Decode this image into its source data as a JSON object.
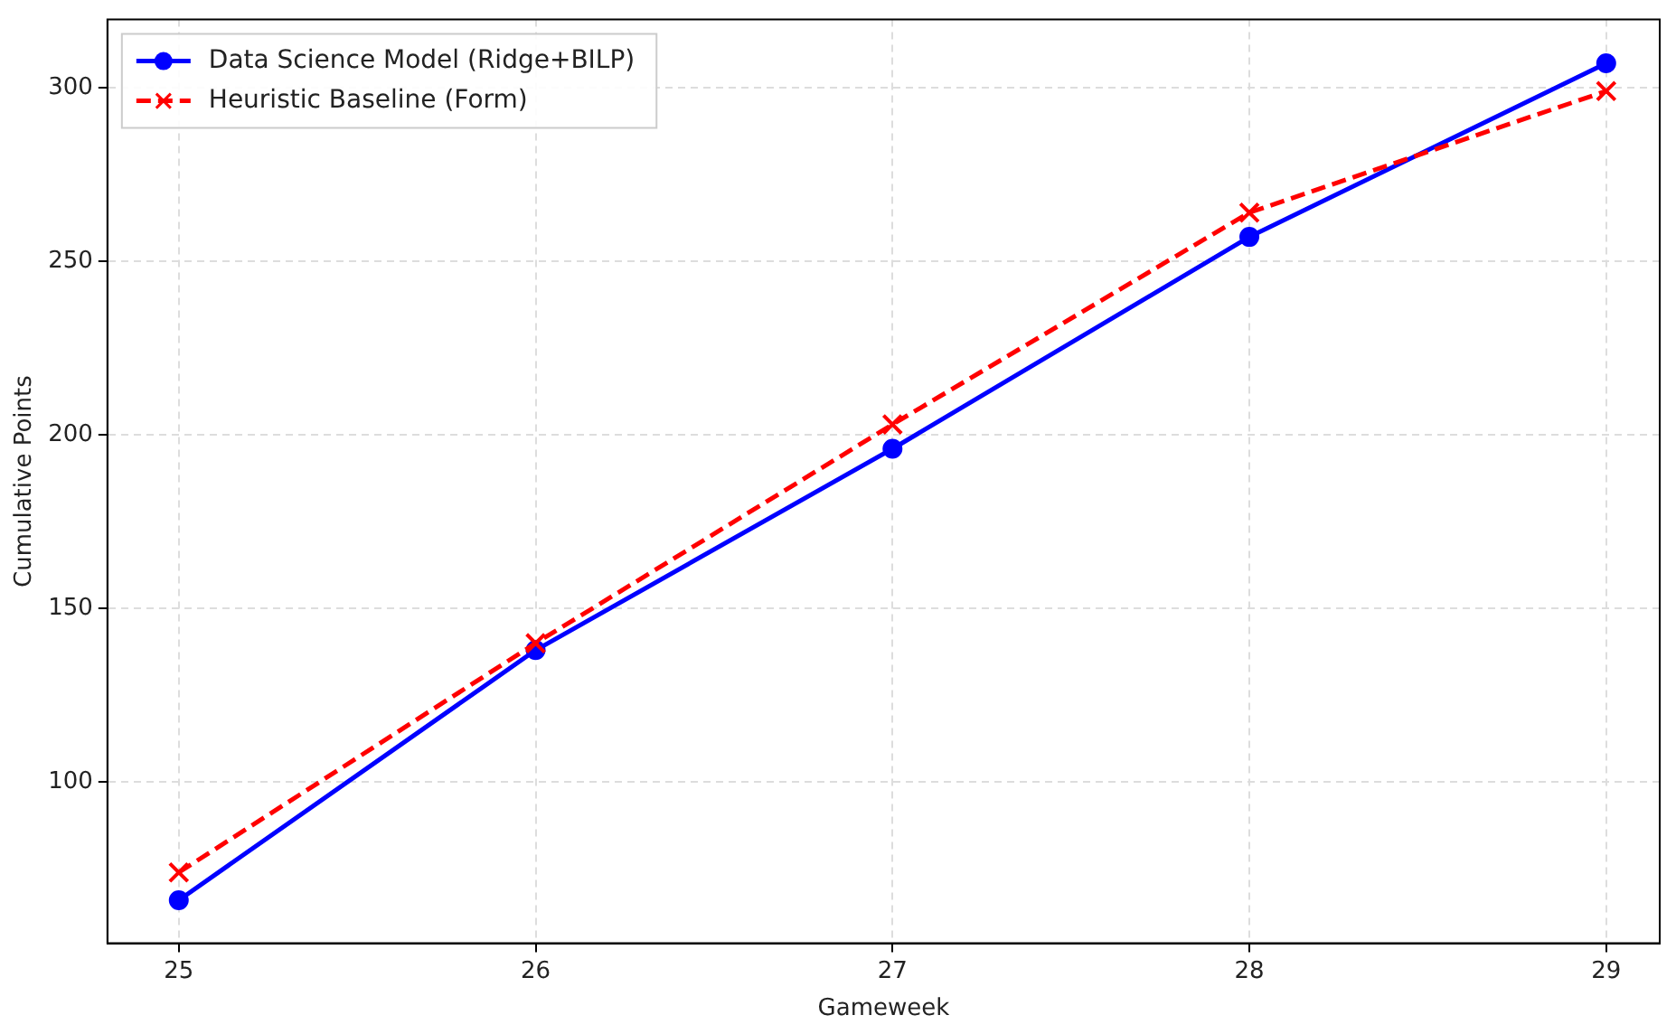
{
  "chart_data": {
    "type": "line",
    "xlabel": "Gameweek",
    "ylabel": "Cumulative Points",
    "x": [
      25,
      26,
      27,
      28,
      29
    ],
    "series": [
      {
        "name": "Data Science Model (Ridge+BILP)",
        "color": "#0000ff",
        "values": [
          66,
          138,
          196,
          257,
          307
        ],
        "marker": "circle",
        "line_style": "solid"
      },
      {
        "name": "Heuristic Baseline (Form)",
        "color": "#ff0000",
        "values": [
          74,
          140,
          203,
          264,
          299
        ],
        "marker": "cross",
        "line_style": "dashed"
      }
    ],
    "xlim": [
      24.8,
      29.15
    ],
    "xticks": [
      25,
      26,
      27,
      28,
      29
    ],
    "ylim": [
      53.6,
      319.6
    ],
    "yticks": [
      100,
      150,
      200,
      250,
      300
    ],
    "grid": true,
    "legend": "top left"
  }
}
